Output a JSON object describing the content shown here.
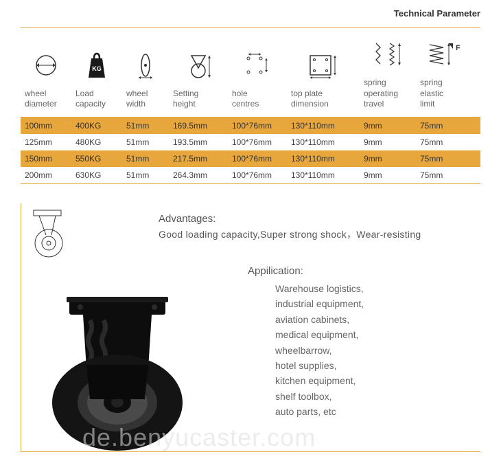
{
  "title": "Technical Parameter",
  "columns": [
    {
      "label": "wheel\ndiameter"
    },
    {
      "label": "Load\ncapacity"
    },
    {
      "label": "wheel\nwidth"
    },
    {
      "label": "Setting\nheight"
    },
    {
      "label": "hole\ncentres"
    },
    {
      "label": "top plate\ndimension"
    },
    {
      "label": "spring\noperating\ntravel"
    },
    {
      "label": "spring\nelastic\nlimit"
    }
  ],
  "rows": [
    [
      "100mm",
      "400KG",
      "51mm",
      "169.5mm",
      "100*76mm",
      "130*110mm",
      "9mm",
      "75mm"
    ],
    [
      "125mm",
      "480KG",
      "51mm",
      "193.5mm",
      "100*76mm",
      "130*110mm",
      "9mm",
      "75mm"
    ],
    [
      "150mm",
      "550KG",
      "51mm",
      "217.5mm",
      "100*76mm",
      "130*110mm",
      "9mm",
      "75mm"
    ],
    [
      "200mm",
      "630KG",
      "51mm",
      "264.3mm",
      "100*76mm",
      "130*110mm",
      "9mm",
      "75mm"
    ]
  ],
  "row_colors": {
    "odd": "#e8a73c",
    "even": "#ffffff"
  },
  "border_color": "#e5a838",
  "advantages": {
    "title": "Advantages:",
    "text": "Good loading capacity,Super strong shock，Wear-resisting"
  },
  "application": {
    "title": "Appilication:",
    "items": [
      "Warehouse logistics,",
      "industrial equipment,",
      "aviation cabinets,",
      "medical equipment,",
      "wheelbarrow,",
      "hotel supplies,",
      "kitchen equipment,",
      "shelf toolbox,",
      "auto parts, etc"
    ]
  },
  "watermark": "de.benyucaster.com",
  "icon_colors": {
    "stroke": "#333",
    "fill_dark": "#1a1a1a"
  }
}
